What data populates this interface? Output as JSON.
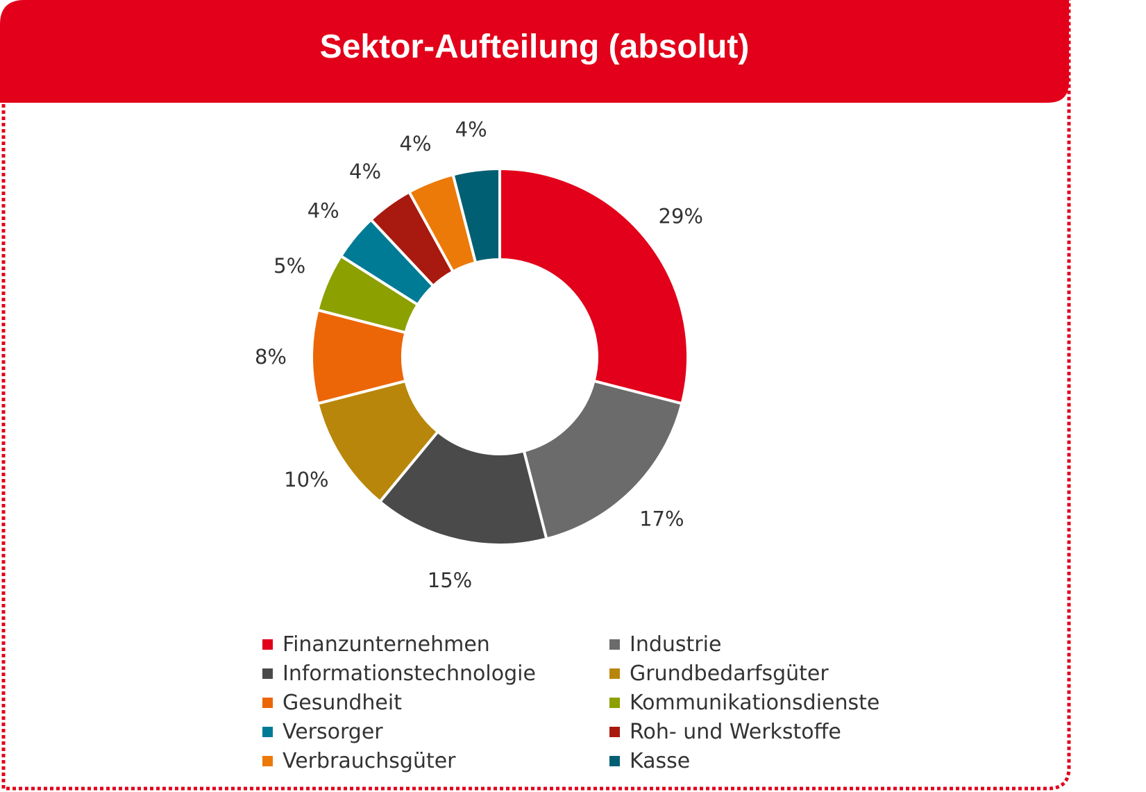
{
  "header": {
    "title": "Sektor-Aufteilung (absolut)"
  },
  "colors": {
    "brand_red": "#E2001A",
    "label_text": "#333333"
  },
  "chart_data": {
    "type": "pie",
    "title": "Sektor-Aufteilung (absolut)",
    "donut": true,
    "legend_position": "bottom",
    "slices": [
      {
        "name": "Finanzunternehmen",
        "value": 29,
        "label": "29%",
        "color": "#E2001A"
      },
      {
        "name": "Industrie",
        "value": 17,
        "label": "17%",
        "color": "#6B6B6B"
      },
      {
        "name": "Informationstechnologie",
        "value": 15,
        "label": "15%",
        "color": "#4A4A4A"
      },
      {
        "name": "Grundbedarfsgüter",
        "value": 10,
        "label": "10%",
        "color": "#B8860B"
      },
      {
        "name": "Gesundheit",
        "value": 8,
        "label": "8%",
        "color": "#EC6608"
      },
      {
        "name": "Kommunikationsdienste",
        "value": 5,
        "label": "5%",
        "color": "#8CA000"
      },
      {
        "name": "Versorger",
        "value": 4,
        "label": "4%",
        "color": "#007B95"
      },
      {
        "name": "Roh- und Werkstoffe",
        "value": 4,
        "label": "4%",
        "color": "#A8190F"
      },
      {
        "name": "Verbrauchsgüter",
        "value": 4,
        "label": "4%",
        "color": "#EC7A08"
      },
      {
        "name": "Kasse",
        "value": 4,
        "label": "4%",
        "color": "#005F73"
      }
    ]
  }
}
